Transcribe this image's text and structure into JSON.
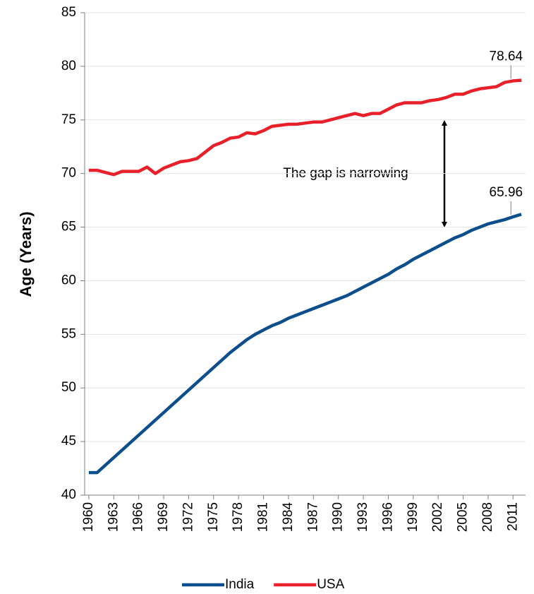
{
  "chart_data": {
    "type": "line",
    "y_label": "Age (Years)",
    "categories": [
      "1960",
      null,
      null,
      "1963",
      null,
      null,
      "1966",
      null,
      null,
      "1969",
      null,
      null,
      "1972",
      null,
      null,
      "1975",
      null,
      null,
      "1978",
      null,
      null,
      "1981",
      null,
      null,
      "1984",
      null,
      null,
      "1987",
      null,
      null,
      "1990",
      null,
      null,
      "1993",
      null,
      null,
      "1996",
      null,
      null,
      "1999",
      null,
      null,
      "2002",
      null,
      null,
      "2005",
      null,
      null,
      "2008",
      null,
      null,
      "2011",
      null
    ],
    "series": [
      {
        "name": "India",
        "color": "#0d4e8c",
        "label_index": 51,
        "values": [
          42.1,
          42.1,
          42.8,
          43.5,
          44.2,
          44.9,
          45.6,
          46.3,
          47.0,
          47.7,
          48.4,
          49.1,
          49.8,
          50.5,
          51.2,
          51.9,
          52.6,
          53.3,
          53.9,
          54.5,
          55.0,
          55.4,
          55.8,
          56.1,
          56.5,
          56.8,
          57.1,
          57.4,
          57.7,
          58.0,
          58.3,
          58.6,
          59.0,
          59.4,
          59.8,
          60.2,
          60.6,
          61.1,
          61.5,
          62.0,
          62.4,
          62.8,
          63.2,
          63.6,
          64.0,
          64.3,
          64.7,
          65.0,
          65.3,
          65.5,
          65.7,
          65.96,
          66.2
        ]
      },
      {
        "name": "USA",
        "color": "#e8202a",
        "label_index": 51,
        "values": [
          70.3,
          70.3,
          70.1,
          69.9,
          70.2,
          70.2,
          70.2,
          70.6,
          70.0,
          70.5,
          70.8,
          71.1,
          71.2,
          71.4,
          72.0,
          72.6,
          72.9,
          73.3,
          73.4,
          73.8,
          73.7,
          74.0,
          74.4,
          74.5,
          74.6,
          74.6,
          74.7,
          74.8,
          74.8,
          75.0,
          75.2,
          75.4,
          75.6,
          75.4,
          75.6,
          75.6,
          76.0,
          76.4,
          76.6,
          76.6,
          76.6,
          76.8,
          76.9,
          77.1,
          77.4,
          77.4,
          77.7,
          77.9,
          78.0,
          78.1,
          78.5,
          78.64,
          78.7
        ]
      }
    ],
    "ylim": [
      40,
      85
    ],
    "yticks": [
      40,
      45,
      50,
      55,
      60,
      65,
      70,
      75,
      80,
      85
    ],
    "grid": true,
    "legend": "bottom",
    "annotation": "The gap is narrowing"
  }
}
